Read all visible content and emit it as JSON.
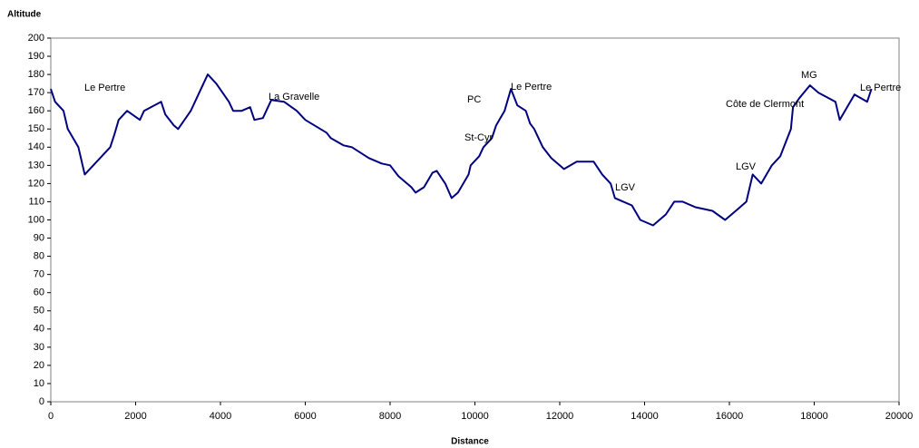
{
  "chart_data": {
    "type": "line",
    "y_label": "Altitude",
    "x_label": "Distance",
    "x": [
      0,
      100,
      300,
      400,
      650,
      800,
      1400,
      1500,
      1600,
      1800,
      2100,
      2200,
      2600,
      2700,
      2900,
      3000,
      3300,
      3700,
      3900,
      4200,
      4300,
      4500,
      4700,
      4800,
      5000,
      5200,
      5500,
      5800,
      6000,
      6500,
      6600,
      6900,
      7100,
      7500,
      7800,
      8000,
      8200,
      8500,
      8600,
      8800,
      9000,
      9100,
      9300,
      9450,
      9600,
      9850,
      9900,
      10100,
      10200,
      10400,
      10500,
      10700,
      10850,
      11000,
      11200,
      11300,
      11400,
      11600,
      11800,
      12100,
      12400,
      12800,
      13000,
      13200,
      13300,
      13500,
      13700,
      13900,
      14200,
      14500,
      14700,
      14900,
      15200,
      15600,
      15900,
      16200,
      16400,
      16550,
      16750,
      17000,
      17200,
      17450,
      17500,
      17650,
      17900,
      18100,
      18500,
      18600,
      18950,
      19250,
      19350
    ],
    "series": [
      {
        "name": "Altitude",
        "color": "#000080",
        "values": [
          172,
          165,
          160,
          150,
          140,
          125,
          140,
          147,
          155,
          160,
          155,
          160,
          165,
          158,
          152,
          150,
          160,
          180,
          175,
          165,
          160,
          160,
          162,
          155,
          156,
          166,
          165,
          160,
          155,
          148,
          145,
          141,
          140,
          134,
          131,
          130,
          124,
          118,
          115,
          118,
          126,
          127,
          120,
          112,
          115,
          125,
          130,
          135,
          140,
          145,
          152,
          160,
          172,
          163,
          160,
          153,
          150,
          140,
          134,
          128,
          132,
          132,
          125,
          120,
          112,
          110,
          108,
          100,
          97,
          103,
          110,
          110,
          107,
          105,
          100,
          106,
          110,
          125,
          120,
          130,
          135,
          150,
          162,
          167,
          174,
          170,
          165,
          155,
          169,
          165,
          172
        ]
      }
    ],
    "annotations": [
      "Le Pertre",
      "La Gravelle",
      "PC",
      "Le Pertre",
      "St-Cyr",
      "LGV",
      "LGV",
      "MG",
      "Côte de Clermont",
      "Le Pertre"
    ],
    "xlim": [
      0,
      20000
    ],
    "xticks": [
      0,
      2000,
      4000,
      6000,
      8000,
      10000,
      12000,
      14000,
      16000,
      18000,
      20000
    ],
    "ylim": [
      0,
      200
    ],
    "yticks": [
      0,
      10,
      20,
      30,
      40,
      50,
      60,
      70,
      80,
      90,
      100,
      110,
      120,
      130,
      140,
      150,
      160,
      170,
      180,
      190,
      200
    ],
    "grid": false
  }
}
